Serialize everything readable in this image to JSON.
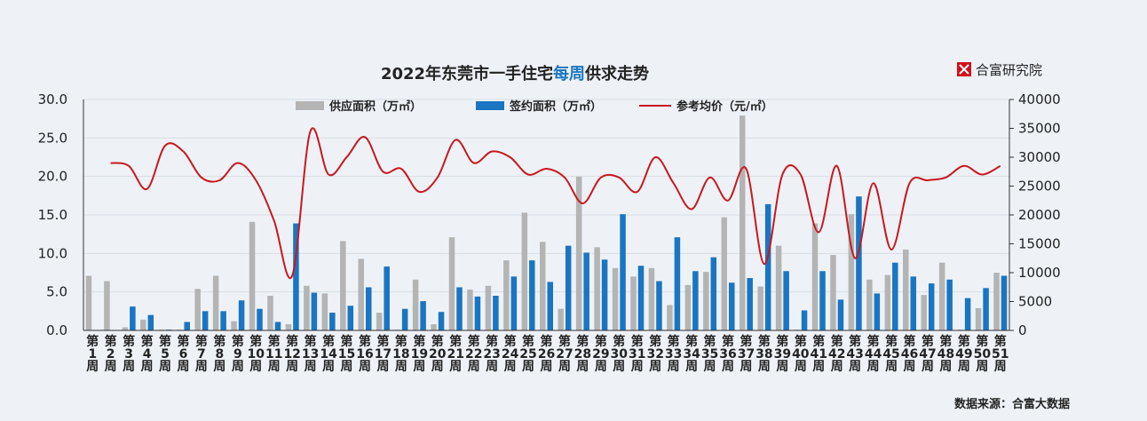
{
  "brand": {
    "name": "合富研究院"
  },
  "source": "数据来源：合富大数据",
  "chart_data": {
    "type": "bar",
    "title_parts": [
      "2022年东莞市一手住宅",
      "每周",
      "供求走势"
    ],
    "title_highlight_color": "#1a75c2",
    "categories": [
      "第1周",
      "第2周",
      "第3周",
      "第4周",
      "第5周",
      "第6周",
      "第7周",
      "第8周",
      "第9周",
      "第10周",
      "第11周",
      "第12周",
      "第13周",
      "第14周",
      "第15周",
      "第16周",
      "第17周",
      "第18周",
      "第19周",
      "第20周",
      "第21周",
      "第22周",
      "第23周",
      "第24周",
      "第25周",
      "第26周",
      "第27周",
      "第28周",
      "第29周",
      "第30周",
      "第31周",
      "第32周",
      "第33周",
      "第34周",
      "第35周",
      "第36周",
      "第37周",
      "第38周",
      "第39周",
      "第40周",
      "第41周",
      "第42周",
      "第43周",
      "第44周",
      "第45周",
      "第46周",
      "第47周",
      "第48周",
      "第49周",
      "第50周",
      "第51周"
    ],
    "y_left": {
      "range": [
        0,
        30
      ],
      "ticks": [
        "0.0",
        "5.0",
        "10.0",
        "15.0",
        "20.0",
        "25.0",
        "30.0"
      ]
    },
    "y_right": {
      "range": [
        0,
        40000
      ],
      "ticks": [
        "0",
        "5000",
        "10000",
        "15000",
        "20000",
        "25000",
        "30000",
        "35000",
        "40000"
      ]
    },
    "series": [
      {
        "name": "供应面积（万㎡）",
        "kind": "bar",
        "axis": "left",
        "color": "#b4b4b4",
        "values": [
          7.1,
          6.4,
          0.4,
          1.4,
          0.1,
          0.1,
          5.4,
          7.1,
          1.2,
          14.1,
          4.5,
          0.8,
          5.8,
          4.8,
          11.6,
          9.3,
          2.3,
          0.1,
          6.6,
          0.8,
          12.1,
          5.3,
          5.8,
          9.1,
          15.3,
          11.5,
          2.8,
          20.0,
          10.8,
          8.1,
          7.0,
          8.1,
          3.3,
          5.9,
          7.6,
          14.7,
          27.9,
          5.7,
          11.0,
          0.1,
          13.9,
          9.8,
          15.1,
          6.6,
          7.2,
          10.5,
          4.6,
          8.8,
          0.1,
          2.9,
          7.5
        ]
      },
      {
        "name": "签约面积（万㎡）",
        "kind": "bar",
        "axis": "left",
        "color": "#1a75c2",
        "values": [
          0,
          0,
          3.1,
          2.0,
          0.1,
          1.1,
          2.5,
          2.5,
          3.9,
          2.8,
          1.1,
          13.9,
          4.9,
          2.3,
          3.2,
          5.6,
          8.3,
          2.8,
          3.8,
          2.4,
          5.6,
          4.4,
          4.5,
          7.0,
          9.1,
          6.3,
          11.0,
          10.1,
          9.2,
          15.1,
          8.4,
          6.4,
          12.1,
          7.7,
          9.5,
          6.2,
          6.8,
          16.4,
          7.7,
          2.6,
          7.7,
          4.0,
          17.4,
          4.8,
          8.8,
          7.0,
          6.1,
          6.6,
          4.2,
          5.5,
          7.1
        ]
      },
      {
        "name": "参考均价（元/㎡）",
        "kind": "line",
        "axis": "right",
        "color": "#c8181e",
        "values": [
          null,
          29000,
          28500,
          24500,
          32000,
          31000,
          26500,
          26000,
          29000,
          26000,
          19000,
          9500,
          34500,
          27000,
          30000,
          33500,
          27500,
          28000,
          24000,
          26500,
          33000,
          29000,
          31000,
          30000,
          27000,
          28000,
          26500,
          22000,
          26500,
          26500,
          24000,
          30000,
          25500,
          21000,
          26500,
          22500,
          28000,
          11500,
          27000,
          27000,
          17000,
          28500,
          12500,
          25500,
          14000,
          25500,
          26000,
          26500,
          28500,
          27000,
          28500
        ]
      }
    ]
  }
}
